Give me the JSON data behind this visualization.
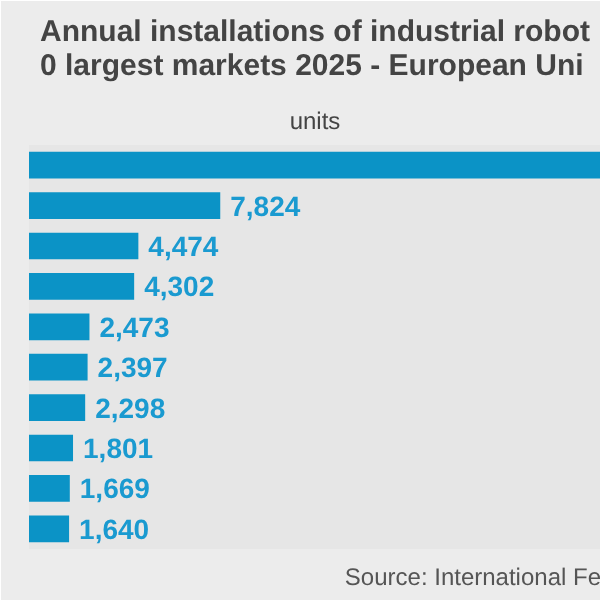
{
  "chart_data": {
    "type": "bar",
    "orientation": "horizontal",
    "title": "Annual installations of industrial robot\n0 largest markets 2025 - European Uni",
    "subtitle": "units",
    "categories": [
      null,
      null,
      null,
      null,
      null,
      null,
      null,
      null,
      null,
      null
    ],
    "values": [
      23400,
      7824,
      4474,
      4302,
      2473,
      2397,
      2298,
      1801,
      1669,
      1640
    ],
    "value_labels": [
      null,
      "7,824",
      "4,474",
      "4,302",
      "2,473",
      "2,397",
      "2,298",
      "1,801",
      "1,669",
      "1,640"
    ],
    "color": "#0b93c6",
    "annotations": [
      "Source: International Fe"
    ]
  }
}
